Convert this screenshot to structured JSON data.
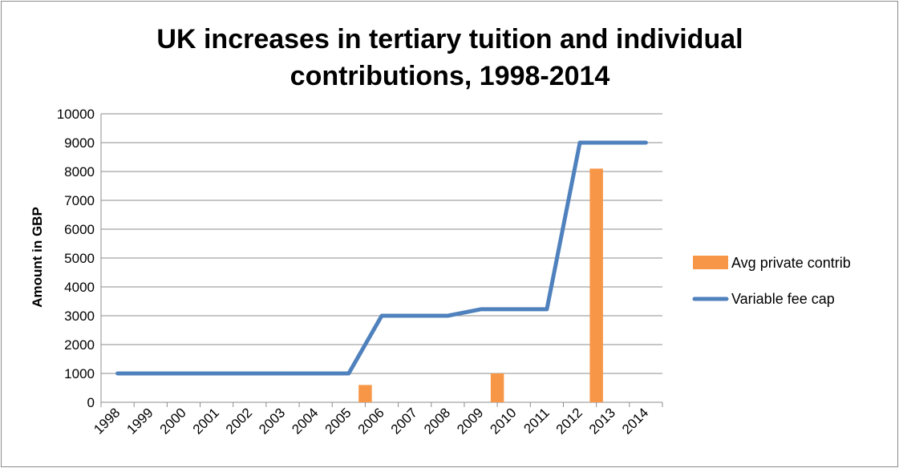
{
  "chart_data": {
    "type": "bar+line",
    "title_line1": "UK increases in tertiary tuition and individual",
    "title_line2": "contributions, 1998-2014",
    "ylabel": "Amount in GBP",
    "xlabel": "",
    "ylim": [
      0,
      10000
    ],
    "yticks": [
      0,
      1000,
      2000,
      3000,
      4000,
      5000,
      6000,
      7000,
      8000,
      9000,
      10000
    ],
    "grid": true,
    "legend_position": "right",
    "categories": [
      "1998",
      "1999",
      "2000",
      "2001",
      "2002",
      "2003",
      "2004",
      "2005",
      "2006",
      "2007",
      "2008",
      "2009",
      "2010",
      "2011",
      "2012",
      "2013",
      "2014"
    ],
    "series": [
      {
        "name": "Avg private contrib",
        "kind": "bar",
        "color": "#f79646",
        "values": [
          null,
          null,
          null,
          null,
          null,
          null,
          null,
          600,
          null,
          null,
          null,
          1000,
          null,
          null,
          8100,
          null,
          null
        ]
      },
      {
        "name": "Variable fee cap",
        "kind": "line",
        "color": "#4f81bd",
        "values": [
          1000,
          1000,
          1000,
          1000,
          1000,
          1000,
          1000,
          1000,
          3000,
          3000,
          3000,
          3225,
          3225,
          3225,
          9000,
          9000,
          9000
        ]
      }
    ]
  }
}
